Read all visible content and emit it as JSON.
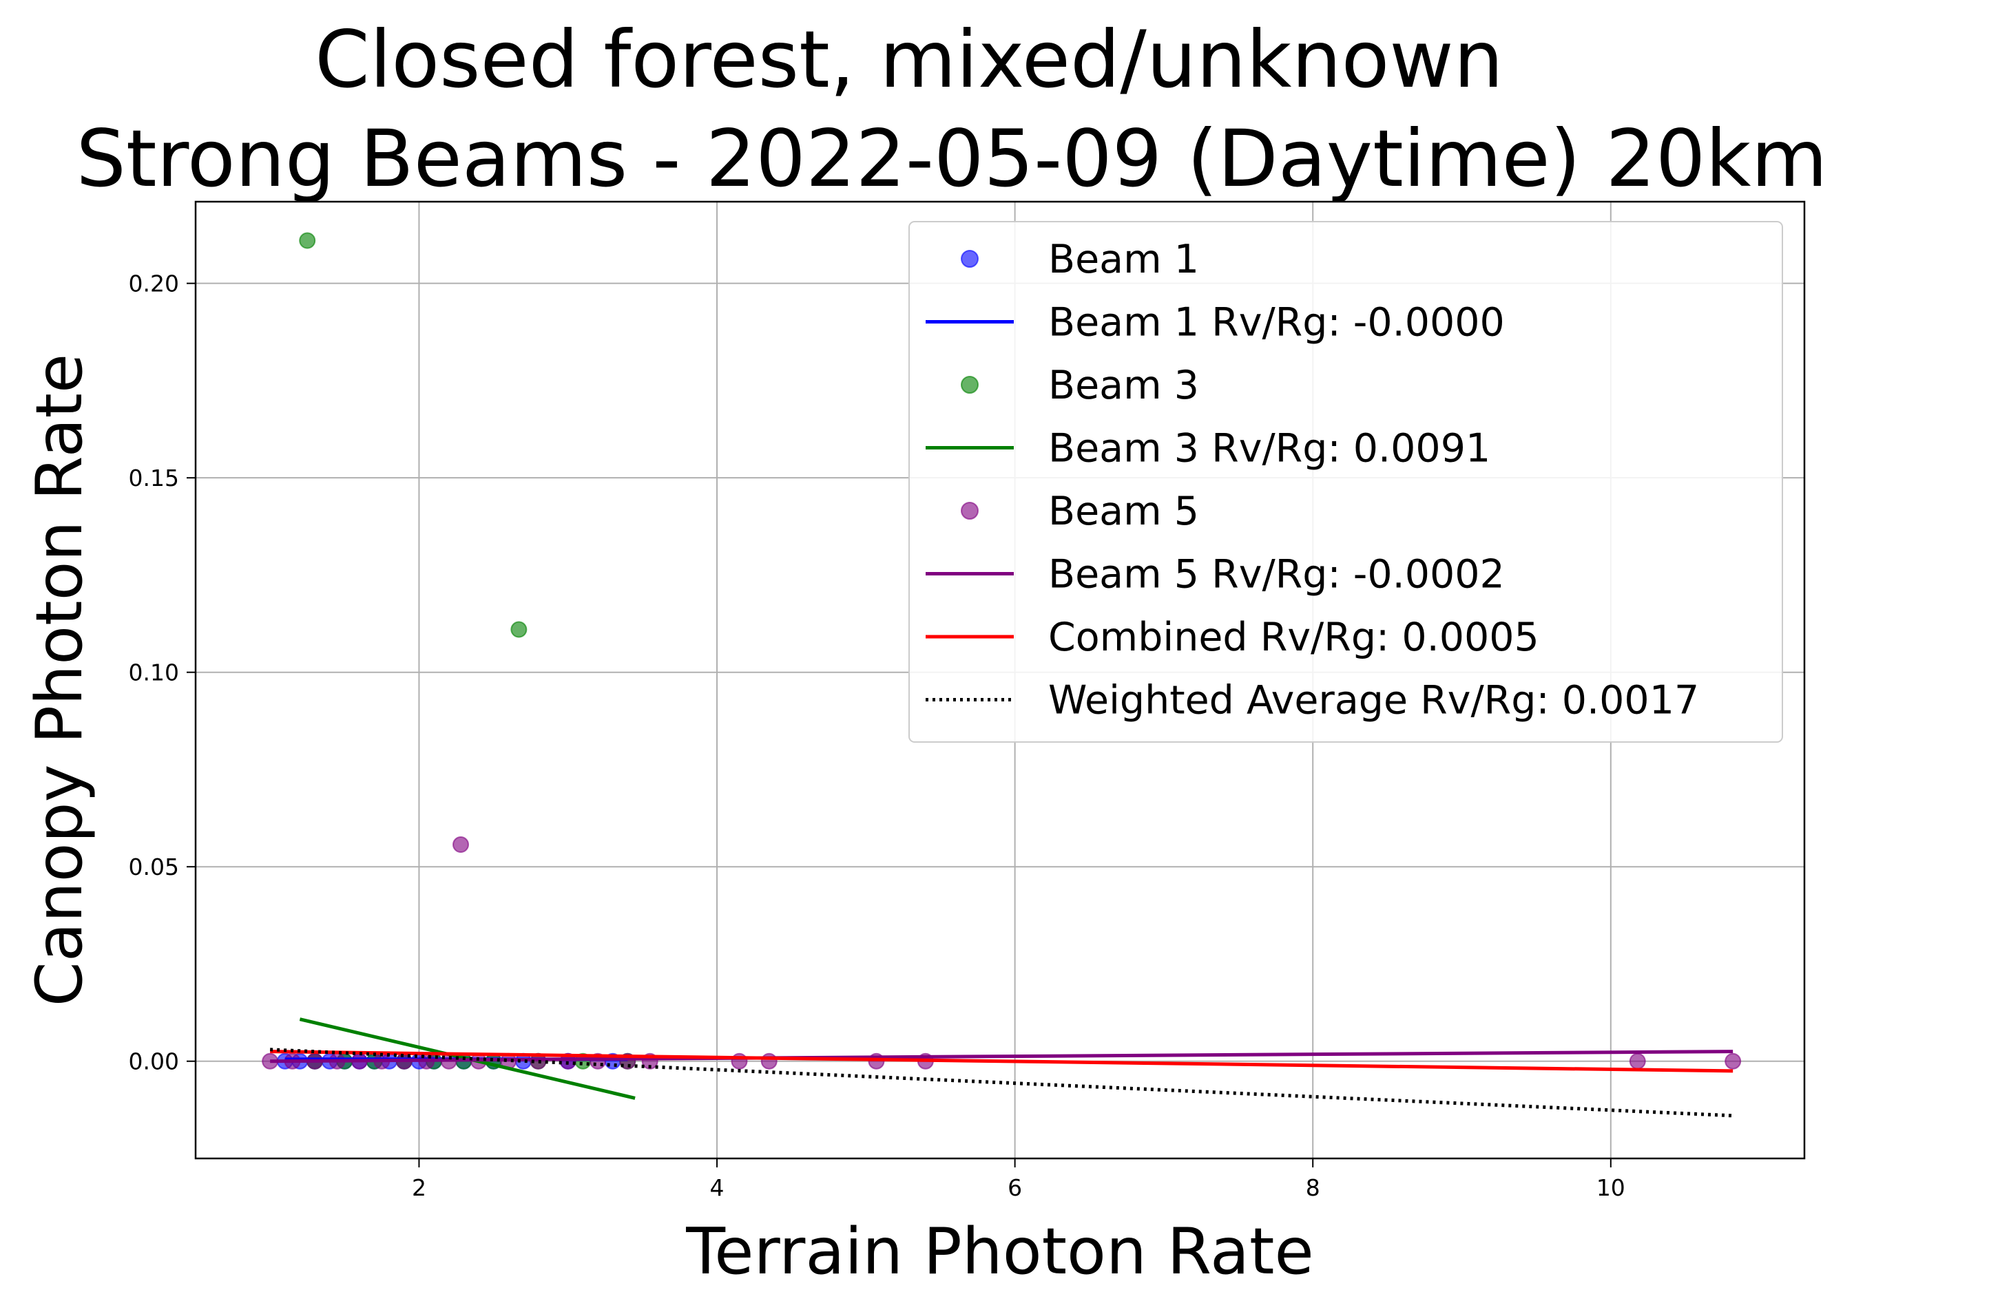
{
  "chart_data": {
    "type": "scatter",
    "title": "Closed forest, mixed/unknown",
    "subtitle": "Strong Beams - 2022-05-09 (Daytime) 20km",
    "xlabel": "Terrain Photon Rate",
    "ylabel": "Canopy Photon Rate",
    "xlim": [
      0.5,
      11.3
    ],
    "ylim": [
      -0.025,
      0.221
    ],
    "xticks": [
      2,
      4,
      6,
      8,
      10
    ],
    "yticks": [
      0.0,
      0.05,
      0.1,
      0.15,
      0.2
    ],
    "xtick_labels": [
      "2",
      "4",
      "6",
      "8",
      "10"
    ],
    "ytick_labels": [
      "0.00",
      "0.05",
      "0.10",
      "0.15",
      "0.20"
    ],
    "grid": true,
    "legend_position": "top-right",
    "series": [
      {
        "name": "Beam 1",
        "kind": "scatter",
        "color": "#0000ff",
        "points": [
          [
            1.1,
            0.0
          ],
          [
            1.2,
            0.0
          ],
          [
            1.3,
            0.0
          ],
          [
            1.4,
            0.0
          ],
          [
            1.5,
            0.0
          ],
          [
            1.6,
            0.0
          ],
          [
            1.7,
            0.0
          ],
          [
            1.8,
            0.0
          ],
          [
            1.9,
            0.0
          ],
          [
            2.0,
            0.0
          ],
          [
            2.1,
            0.0
          ],
          [
            2.3,
            0.0
          ],
          [
            2.5,
            0.0
          ],
          [
            2.7,
            0.0
          ],
          [
            3.0,
            0.0
          ],
          [
            3.3,
            0.0
          ]
        ]
      },
      {
        "name": "Beam 1 Rv/Rg: -0.0000",
        "kind": "line",
        "color": "#0000ff",
        "points": [
          [
            1.1,
            0.0005
          ],
          [
            3.4,
            0.0005
          ]
        ]
      },
      {
        "name": "Beam 3",
        "kind": "scatter",
        "color": "#008000",
        "points": [
          [
            1.25,
            0.211
          ],
          [
            2.67,
            0.111
          ],
          [
            1.3,
            0.0
          ],
          [
            1.5,
            0.0
          ],
          [
            1.7,
            0.0
          ],
          [
            1.9,
            0.0
          ],
          [
            2.1,
            0.0
          ],
          [
            2.3,
            0.0
          ],
          [
            2.5,
            0.0
          ],
          [
            2.8,
            0.0
          ],
          [
            3.1,
            0.0
          ],
          [
            3.4,
            0.0
          ]
        ]
      },
      {
        "name": "Beam 3 Rv/Rg: 0.0091",
        "kind": "line",
        "color": "#008000",
        "points": [
          [
            1.2,
            0.0108
          ],
          [
            3.45,
            -0.0095
          ]
        ]
      },
      {
        "name": "Beam 5",
        "kind": "scatter",
        "color": "#800080",
        "points": [
          [
            2.28,
            0.0557
          ],
          [
            1.0,
            0.0
          ],
          [
            1.15,
            0.0
          ],
          [
            1.3,
            0.0
          ],
          [
            1.45,
            0.0
          ],
          [
            1.6,
            0.0
          ],
          [
            1.75,
            0.0
          ],
          [
            1.9,
            0.0
          ],
          [
            2.05,
            0.0
          ],
          [
            2.2,
            0.0
          ],
          [
            2.4,
            0.0
          ],
          [
            2.6,
            0.0
          ],
          [
            2.8,
            0.0
          ],
          [
            3.0,
            0.0
          ],
          [
            3.2,
            0.0
          ],
          [
            3.4,
            0.0
          ],
          [
            3.55,
            0.0
          ],
          [
            4.15,
            0.0
          ],
          [
            4.35,
            0.0
          ],
          [
            5.07,
            0.0
          ],
          [
            5.4,
            0.0
          ],
          [
            10.18,
            0.0
          ],
          [
            10.82,
            0.0
          ]
        ]
      },
      {
        "name": "Beam 5 Rv/Rg: -0.0002",
        "kind": "line",
        "color": "#800080",
        "points": [
          [
            1.0,
            0.0
          ],
          [
            10.82,
            0.0025
          ]
        ]
      },
      {
        "name": "Combined Rv/Rg: 0.0005",
        "kind": "line",
        "color": "#ff0000",
        "points": [
          [
            1.0,
            0.0025
          ],
          [
            10.82,
            -0.0025
          ]
        ]
      },
      {
        "name": "Weighted Average Rv/Rg: 0.0017",
        "kind": "dotted-line",
        "color": "#000000",
        "points": [
          [
            1.0,
            0.003
          ],
          [
            10.82,
            -0.014
          ]
        ]
      }
    ]
  }
}
